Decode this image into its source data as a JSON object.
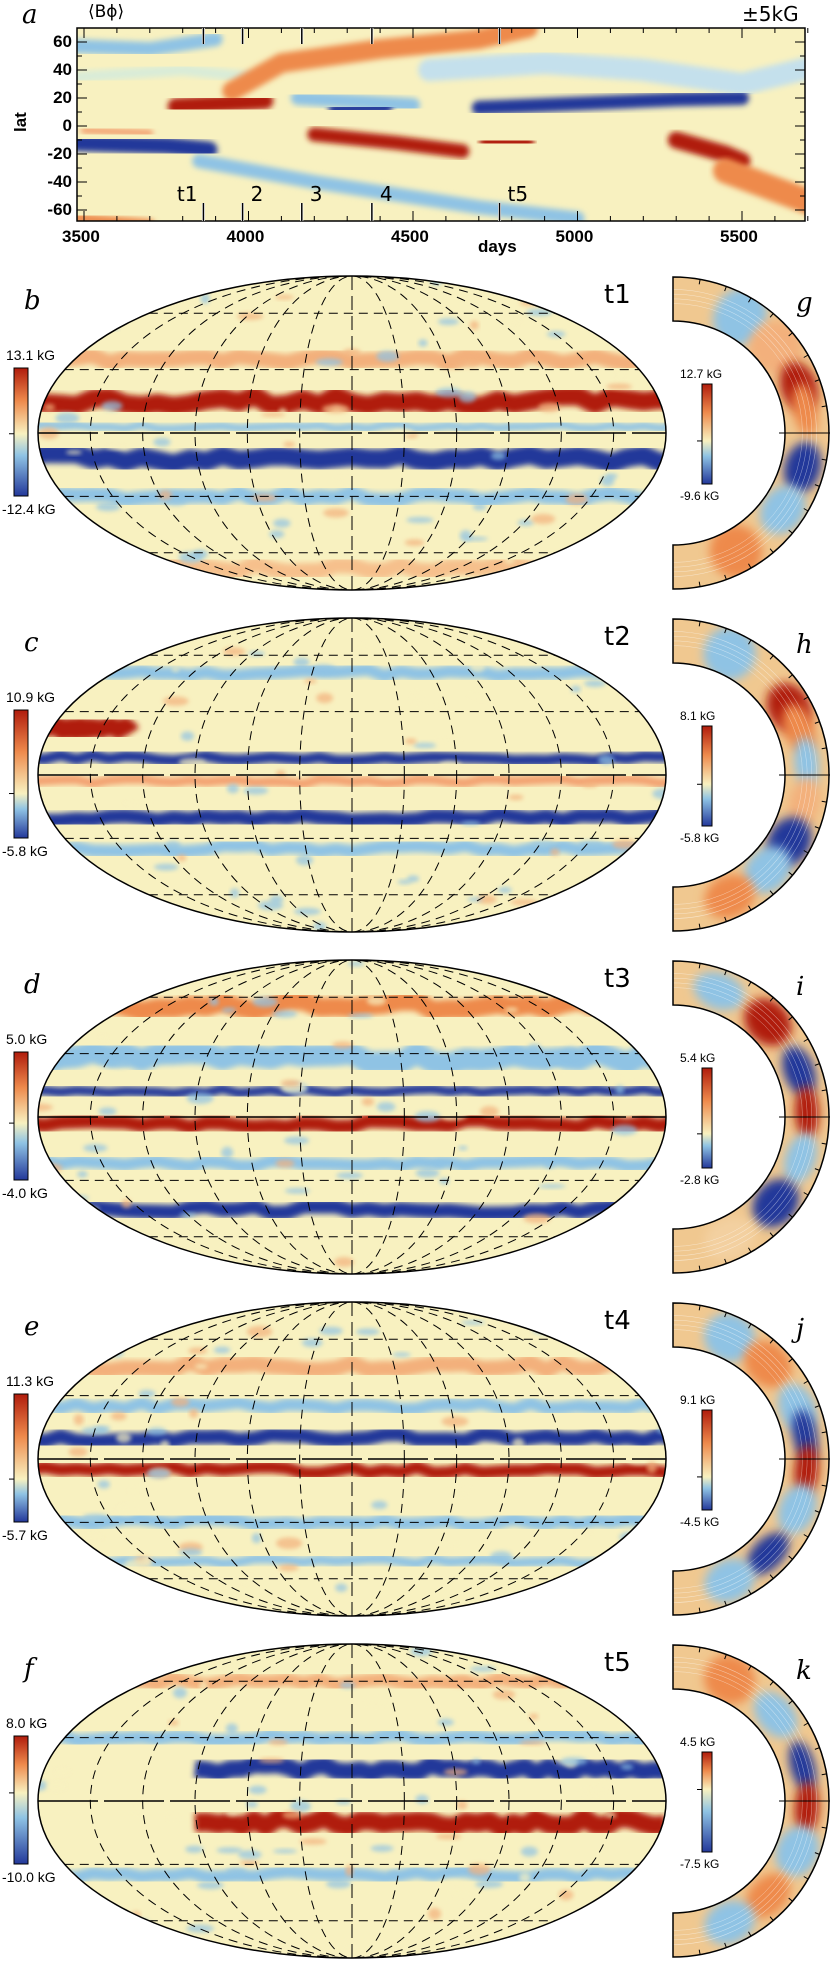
{
  "figure": {
    "panel_a": {
      "label": "a",
      "title": "⟨Bϕ⟩",
      "range": "±5kG",
      "ylabel": "lat",
      "xlabel": "days",
      "xticks": [
        "3500",
        "4000",
        "4500",
        "5000",
        "5500"
      ],
      "yticks": [
        "60",
        "40",
        "20",
        "0",
        "-20",
        "-40",
        "-60"
      ],
      "markers": [
        {
          "label": "t1",
          "day": 3863
        },
        {
          "label": "2",
          "day": 3982
        },
        {
          "label": "3",
          "day": 4162
        },
        {
          "label": "4",
          "day": 4375
        },
        {
          "label": "t5",
          "day": 4763
        }
      ]
    },
    "rows": [
      {
        "map_label": "b",
        "time": "t1",
        "map_max": "13.1 kG",
        "map_min": "-12.4 kG",
        "shell_label": "g",
        "shell_max": "12.7 kG",
        "shell_min": "-9.6 kG"
      },
      {
        "map_label": "c",
        "time": "t2",
        "map_max": "10.9 kG",
        "map_min": "-5.8 kG",
        "shell_label": "h",
        "shell_max": "8.1 kG",
        "shell_min": "-5.8 kG"
      },
      {
        "map_label": "d",
        "time": "t3",
        "map_max": "5.0 kG",
        "map_min": "-4.0 kG",
        "shell_label": "i",
        "shell_max": "5.4 kG",
        "shell_min": "-2.8 kG"
      },
      {
        "map_label": "e",
        "time": "t4",
        "map_max": "11.3 kG",
        "map_min": "-5.7 kG",
        "shell_label": "j",
        "shell_max": "9.1 kG",
        "shell_min": "-4.5 kG"
      },
      {
        "map_label": "f",
        "time": "t5",
        "map_max": "8.0 kG",
        "map_min": "-10.0 kG",
        "shell_label": "k",
        "shell_max": "4.5 kG",
        "shell_min": "-7.5 kG"
      }
    ],
    "colors": {
      "red": "#b01c0c",
      "orange": "#ee8a4c",
      "yellow": "#f8f1c0",
      "lightblue": "#8fc3e4",
      "blue": "#23389a"
    }
  },
  "chart_data": {
    "type": "heatmap",
    "title": "⟨Bϕ⟩",
    "xlabel": "days",
    "ylabel": "lat",
    "xlim": [
      3480,
      5710
    ],
    "ylim": [
      -68,
      70
    ],
    "x_ticks": [
      3500,
      4000,
      4500,
      5000,
      5500
    ],
    "y_ticks": [
      60,
      40,
      20,
      0,
      -20,
      -40,
      -60
    ],
    "color_range_kG": [
      -5,
      5
    ],
    "time_markers_days": [
      3863,
      3982,
      4162,
      4375,
      4763
    ]
  }
}
